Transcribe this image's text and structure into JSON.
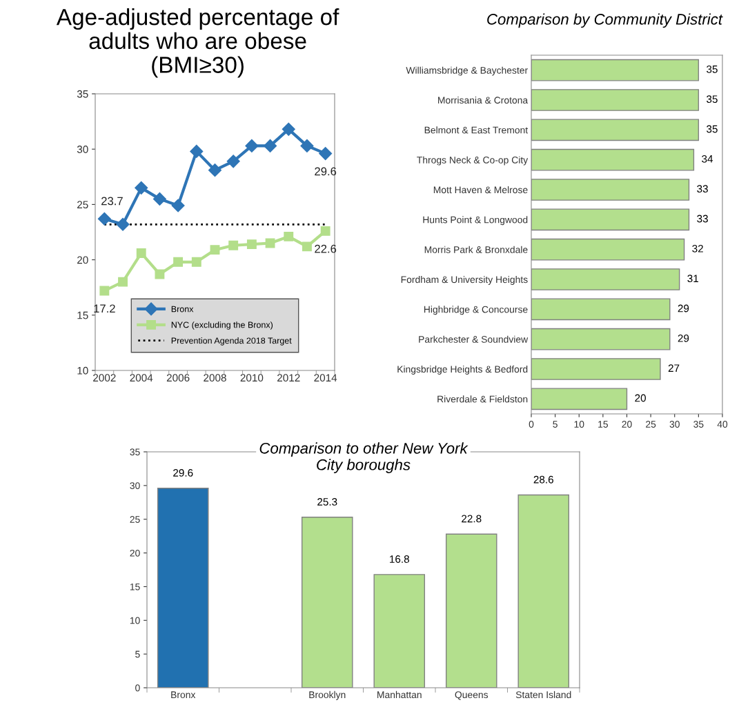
{
  "chart_data": [
    {
      "type": "line",
      "title": "Age-adjusted percentage of\nadults who are obese\n(BMI≥30)",
      "categories": [
        "2002",
        null,
        "2004",
        null,
        "2006",
        null,
        "2008",
        null,
        "2010",
        null,
        "2012",
        null,
        "2014"
      ],
      "series": [
        {
          "name": "Bronx",
          "color": "#2e75b6",
          "marker": "diamond",
          "values": [
            23.7,
            23.2,
            26.5,
            25.5,
            24.9,
            29.8,
            28.1,
            28.9,
            30.3,
            30.3,
            31.8,
            30.3,
            29.6
          ],
          "value_labels": [
            "23.7",
            null,
            null,
            null,
            null,
            null,
            null,
            null,
            null,
            null,
            null,
            null,
            "29.6"
          ]
        },
        {
          "name": "NYC (excluding the Bronx)",
          "color": "#b3de8a",
          "marker": "square",
          "values": [
            17.2,
            18.0,
            20.6,
            18.7,
            19.8,
            19.8,
            20.9,
            21.3,
            21.4,
            21.5,
            22.1,
            21.2,
            22.6
          ],
          "value_labels": [
            "17.2",
            null,
            null,
            null,
            null,
            null,
            null,
            null,
            null,
            null,
            null,
            null,
            "22.6"
          ]
        },
        {
          "name": "Prevention Agenda 2018 Target",
          "color": "#000000",
          "marker": "none",
          "line_style": "dotted",
          "values": [
            23.2,
            23.2,
            23.2,
            23.2,
            23.2,
            23.2,
            23.2,
            23.2,
            23.2,
            23.2,
            23.2,
            23.2,
            23.2
          ]
        }
      ],
      "ylim": [
        10,
        35
      ],
      "yticks": [
        10,
        15,
        20,
        25,
        30,
        35
      ],
      "legend": "bottom",
      "grid": false
    },
    {
      "type": "bar",
      "orientation": "horizontal",
      "title": "Comparison by Community District",
      "categories": [
        "Williamsbridge & Baychester",
        "Morrisania & Crotona",
        "Belmont & East Tremont",
        "Throgs Neck & Co-op City",
        "Mott Haven & Melrose",
        "Hunts Point & Longwood",
        "Morris Park & Bronxdale",
        "Fordham & University Heights",
        "Highbridge & Concourse",
        "Parkchester & Soundview",
        "Kingsbridge Heights & Bedford",
        "Riverdale & Fieldston"
      ],
      "values": [
        35,
        35,
        35,
        34,
        33,
        33,
        32,
        31,
        29,
        29,
        27,
        20
      ],
      "color": "#b3df8d",
      "xlim": [
        0,
        40
      ],
      "xticks": [
        0,
        5,
        10,
        15,
        20,
        25,
        30,
        35,
        40
      ],
      "data_labels": true,
      "grid": false
    },
    {
      "type": "bar",
      "title": "Comparison to other New York\nCity boroughs",
      "categories": [
        "Bronx",
        null,
        "Brooklyn",
        "Manhattan",
        "Queens",
        "Staten Island"
      ],
      "values": [
        29.6,
        null,
        25.3,
        16.8,
        22.8,
        28.6
      ],
      "colors": [
        "#2171b0",
        "#b3df8d",
        "#b3df8d",
        "#b3df8d",
        "#b3df8d",
        "#b3df8d"
      ],
      "ylim": [
        0,
        35
      ],
      "yticks": [
        0,
        5,
        10,
        15,
        20,
        25,
        30,
        35
      ],
      "data_labels": true,
      "grid": false
    }
  ]
}
